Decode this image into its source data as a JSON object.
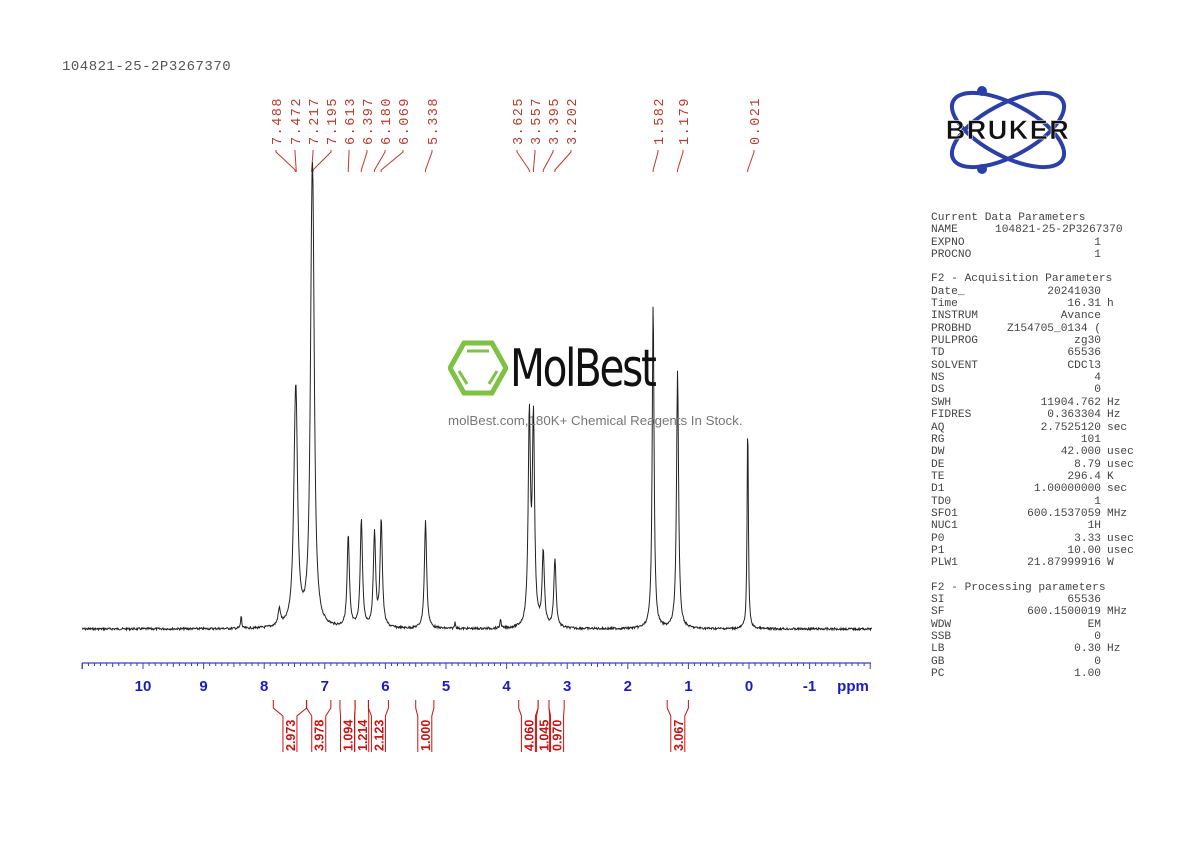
{
  "header": {
    "sample_name": "104821-25-2P3267370"
  },
  "logo": {
    "brand": "BRUKER",
    "color_text": "#111111",
    "color_orbit": "#2b3fa8"
  },
  "watermark": {
    "name": "MolBest",
    "tagline": "molBest.com,180K+ Chemical Reagents In Stock.",
    "icon": "benzene-hexagon-icon",
    "color": "#7dc242"
  },
  "parameters": {
    "groups": [
      {
        "title": "Current Data Parameters",
        "rows": [
          {
            "k": "NAME",
            "v": "104821-25-2P3267370",
            "u": ""
          },
          {
            "k": "EXPNO",
            "v": "1",
            "u": ""
          },
          {
            "k": "PROCNO",
            "v": "1",
            "u": ""
          }
        ]
      },
      {
        "title": "F2 - Acquisition Parameters",
        "rows": [
          {
            "k": "Date_",
            "v": "20241030",
            "u": ""
          },
          {
            "k": "Time",
            "v": "16.31",
            "u": "h"
          },
          {
            "k": "INSTRUM",
            "v": "Avance",
            "u": ""
          },
          {
            "k": "PROBHD",
            "v": "Z154705_0134 (",
            "u": ""
          },
          {
            "k": "PULPROG",
            "v": "zg30",
            "u": ""
          },
          {
            "k": "TD",
            "v": "65536",
            "u": ""
          },
          {
            "k": "SOLVENT",
            "v": "CDCl3",
            "u": ""
          },
          {
            "k": "NS",
            "v": "4",
            "u": ""
          },
          {
            "k": "DS",
            "v": "0",
            "u": ""
          },
          {
            "k": "SWH",
            "v": "11904.762",
            "u": "Hz"
          },
          {
            "k": "FIDRES",
            "v": "0.363304",
            "u": "Hz"
          },
          {
            "k": "AQ",
            "v": "2.7525120",
            "u": "sec"
          },
          {
            "k": "RG",
            "v": "101",
            "u": ""
          },
          {
            "k": "DW",
            "v": "42.000",
            "u": "usec"
          },
          {
            "k": "DE",
            "v": "8.79",
            "u": "usec"
          },
          {
            "k": "TE",
            "v": "296.4",
            "u": "K"
          },
          {
            "k": "D1",
            "v": "1.00000000",
            "u": "sec"
          },
          {
            "k": "TD0",
            "v": "1",
            "u": ""
          },
          {
            "k": "SFO1",
            "v": "600.1537059",
            "u": "MHz"
          },
          {
            "k": "NUC1",
            "v": "1H",
            "u": ""
          },
          {
            "k": "P0",
            "v": "3.33",
            "u": "usec"
          },
          {
            "k": "P1",
            "v": "10.00",
            "u": "usec"
          },
          {
            "k": "PLW1",
            "v": "21.87999916",
            "u": "W"
          }
        ]
      },
      {
        "title": "F2 - Processing parameters",
        "rows": [
          {
            "k": "SI",
            "v": "65536",
            "u": ""
          },
          {
            "k": "SF",
            "v": "600.1500019",
            "u": "MHz"
          },
          {
            "k": "WDW",
            "v": "EM",
            "u": ""
          },
          {
            "k": "SSB",
            "v": "0",
            "u": ""
          },
          {
            "k": "LB",
            "v": "0.30",
            "u": "Hz"
          },
          {
            "k": "GB",
            "v": "0",
            "u": ""
          },
          {
            "k": "PC",
            "v": "1.00",
            "u": ""
          }
        ]
      }
    ]
  },
  "colors": {
    "peak_labels": "#c0392b",
    "integrals": "#cc1111",
    "axis": "#1a1ac8",
    "spectrum": "#222222"
  },
  "chart_data": {
    "type": "line",
    "title": "104821-25-2P3267370",
    "xlabel": "ppm",
    "ylabel": "",
    "xlim": [
      11.0,
      -2.0
    ],
    "x_reversed": true,
    "grid": false,
    "ticks": [
      10,
      9,
      8,
      7,
      6,
      5,
      4,
      3,
      2,
      1,
      0,
      -1
    ],
    "tick_labels": [
      "10",
      "9",
      "8",
      "7",
      "6",
      "5",
      "4",
      "3",
      "2",
      "1",
      "0",
      "-1"
    ],
    "peak_labels": [
      "7.488",
      "7.472",
      "7.217",
      "7.195",
      "6.613",
      "6.397",
      "6.180",
      "6.069",
      "5.338",
      "3.625",
      "3.557",
      "3.395",
      "3.202",
      "1.582",
      "1.179",
      "0.021"
    ],
    "peaks": [
      {
        "ppm": 7.488,
        "height": 0.4
      },
      {
        "ppm": 7.472,
        "height": 0.38
      },
      {
        "ppm": 7.217,
        "height": 0.72
      },
      {
        "ppm": 7.195,
        "height": 0.88
      },
      {
        "ppm": 6.613,
        "height": 0.28
      },
      {
        "ppm": 6.397,
        "height": 0.33
      },
      {
        "ppm": 6.18,
        "height": 0.29
      },
      {
        "ppm": 6.069,
        "height": 0.33
      },
      {
        "ppm": 5.338,
        "height": 0.33
      },
      {
        "ppm": 3.625,
        "height": 0.63
      },
      {
        "ppm": 3.557,
        "height": 0.62
      },
      {
        "ppm": 3.395,
        "height": 0.23
      },
      {
        "ppm": 3.202,
        "height": 0.21
      },
      {
        "ppm": 1.582,
        "height": 1.0
      },
      {
        "ppm": 1.179,
        "height": 0.79
      },
      {
        "ppm": 0.021,
        "height": 0.64
      }
    ],
    "integrals": [
      {
        "from": 7.85,
        "to": 7.3,
        "value": "2.973"
      },
      {
        "from": 7.3,
        "to": 6.9,
        "value": "3.978"
      },
      {
        "from": 6.75,
        "to": 6.5,
        "value": "1.094"
      },
      {
        "from": 6.5,
        "to": 6.28,
        "value": "1.214"
      },
      {
        "from": 6.28,
        "to": 5.95,
        "value": "2.123"
      },
      {
        "from": 5.5,
        "to": 5.2,
        "value": "1.000"
      },
      {
        "from": 3.8,
        "to": 3.48,
        "value": "4.060"
      },
      {
        "from": 3.48,
        "to": 3.3,
        "value": "1.045"
      },
      {
        "from": 3.3,
        "to": 3.05,
        "value": "0.970"
      },
      {
        "from": 1.35,
        "to": 1.0,
        "value": "3.067"
      }
    ]
  }
}
